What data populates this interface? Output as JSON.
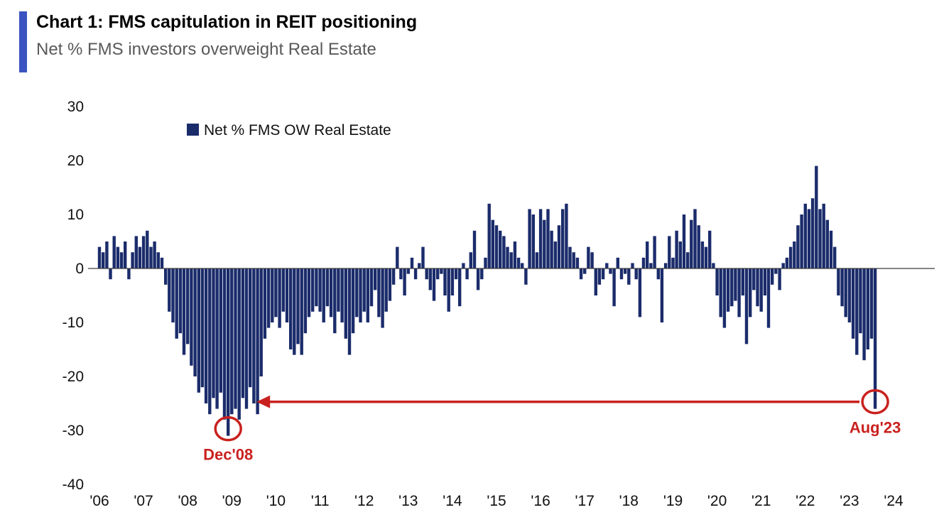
{
  "header": {
    "title": "Chart 1: FMS capitulation in REIT positioning",
    "subtitle": "Net % FMS investors overweight Real Estate",
    "accent_color": "#3b53c0"
  },
  "chart_data": {
    "type": "bar",
    "title": "Net % FMS investors overweight Real Estate",
    "legend_label": "Net % FMS OW Real Estate",
    "bar_color": "#1b2c6b",
    "annotation_color": "#c9211e",
    "frequency": "monthly",
    "start_month": "2006-01",
    "end_month": "2023-08",
    "ylim": [
      -40,
      30
    ],
    "grid": false,
    "legend_position": "top-left-inside",
    "y_ticks": [
      30,
      20,
      10,
      0,
      -10,
      -20,
      -30,
      -40
    ],
    "x_tick_labels": [
      "'06",
      "'07",
      "'08",
      "'09",
      "'10",
      "'11",
      "'12",
      "'13",
      "'14",
      "'15",
      "'16",
      "'17",
      "'18",
      "'19",
      "'20",
      "'21",
      "'22",
      "'23",
      "'24"
    ],
    "values": [
      4,
      3,
      5,
      -2,
      6,
      4,
      3,
      5,
      -2,
      3,
      6,
      4,
      6,
      7,
      4,
      5,
      3,
      2,
      -3,
      -8,
      -10,
      -13,
      -12,
      -16,
      -14,
      -18,
      -20,
      -23,
      -22,
      -25,
      -27,
      -24,
      -26,
      -23,
      -28,
      -31,
      -27,
      -26,
      -28,
      -24,
      -26,
      -22,
      -25,
      -27,
      -20,
      -13,
      -11,
      -10,
      -9,
      -11,
      -8,
      -10,
      -15,
      -16,
      -14,
      -16,
      -12,
      -9,
      -8,
      -7,
      -8,
      -10,
      -7,
      -9,
      -12,
      -8,
      -10,
      -13,
      -16,
      -12,
      -9,
      -10,
      -8,
      -10,
      -7,
      -4,
      -9,
      -11,
      -8,
      -6,
      -3,
      4,
      -2,
      -5,
      -1,
      2,
      -2,
      1,
      4,
      -2,
      -4,
      -6,
      -2,
      -1,
      -5,
      -8,
      -5,
      -2,
      -7,
      1,
      -2,
      3,
      7,
      -4,
      -2,
      2,
      12,
      9,
      8,
      7,
      6,
      4,
      3,
      5,
      2,
      1,
      -3,
      11,
      10,
      3,
      11,
      9,
      11,
      7,
      5,
      8,
      11,
      12,
      4,
      3,
      2,
      -2,
      -1,
      4,
      3,
      -5,
      -3,
      -2,
      1,
      -1,
      -7,
      2,
      -2,
      -1,
      -3,
      1,
      -2,
      -9,
      2,
      5,
      1,
      6,
      -2,
      -10,
      1,
      6,
      2,
      7,
      5,
      10,
      3,
      9,
      11,
      8,
      5,
      4,
      7,
      1,
      -5,
      -9,
      -11,
      -8,
      -7,
      -6,
      -9,
      -5,
      -14,
      -9,
      -4,
      -7,
      -8,
      -5,
      -11,
      -3,
      -1,
      -4,
      1,
      2,
      4,
      5,
      8,
      10,
      12,
      11,
      13,
      19,
      11,
      12,
      9,
      7,
      4,
      -5,
      -7,
      -9,
      -10,
      -13,
      -16,
      -12,
      -17,
      -15,
      -13,
      -26
    ],
    "annotations": [
      {
        "label": "Dec'08",
        "month": "2008-12",
        "index": 35,
        "value": -31
      },
      {
        "label": "Aug'23",
        "month": "2023-08",
        "index": 211,
        "value": -26
      }
    ],
    "arrow": {
      "from_label": "Aug'23",
      "to_label": "Dec'08",
      "y_value": -24.7
    }
  }
}
